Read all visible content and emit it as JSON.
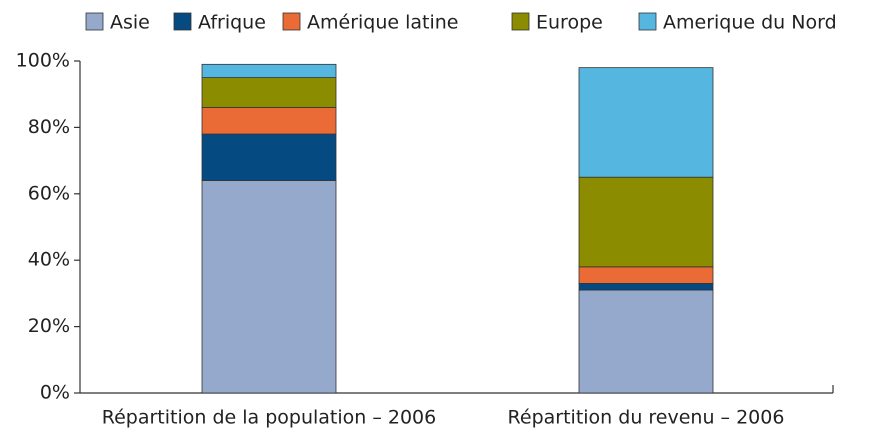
{
  "chart_data": {
    "type": "stacked_bar",
    "categories": [
      "Répartition de la population – 2006",
      "Répartition du revenu – 2006"
    ],
    "series": [
      {
        "name": "Asie",
        "color": "#94a9cb",
        "values": [
          64,
          31
        ]
      },
      {
        "name": "Afrique",
        "color": "#064a82",
        "values": [
          14,
          2
        ]
      },
      {
        "name": "Amérique latine",
        "color": "#ea6b35",
        "values": [
          8,
          5
        ]
      },
      {
        "name": "Europe",
        "color": "#8c8c00",
        "values": [
          9,
          27
        ]
      },
      {
        "name": "Amerique du Nord",
        "color": "#55b7e0",
        "values": [
          4,
          33
        ]
      }
    ],
    "ylim": [
      0,
      100
    ],
    "yticks": [
      {
        "value": 0,
        "label": "0%"
      },
      {
        "value": 20,
        "label": "20%"
      },
      {
        "value": 40,
        "label": "40%"
      },
      {
        "value": 60,
        "label": "60%"
      },
      {
        "value": 80,
        "label": "80%"
      },
      {
        "value": 100,
        "label": "100%"
      }
    ],
    "legend": "top"
  }
}
